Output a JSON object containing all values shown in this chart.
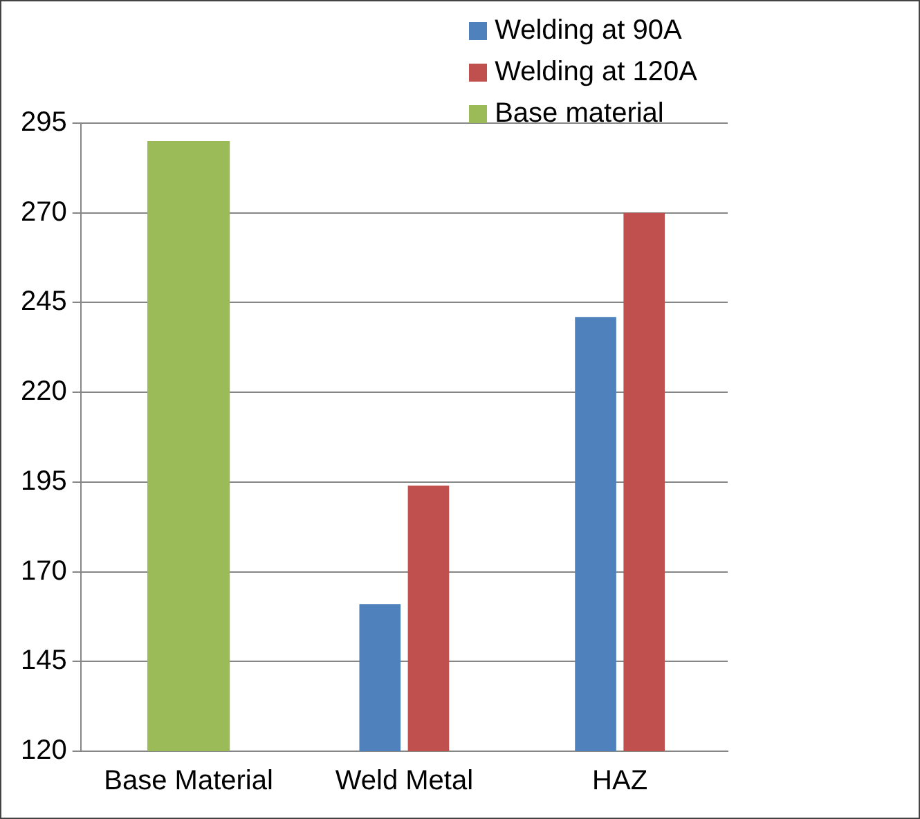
{
  "chart_data": {
    "type": "bar",
    "categories": [
      "Base Material",
      "Weld Metal",
      "HAZ"
    ],
    "series": [
      {
        "name": "Welding at 90A",
        "color": "#4f81bd",
        "values": [
          null,
          161,
          241
        ]
      },
      {
        "name": "Welding at 120A",
        "color": "#c0504d",
        "values": [
          null,
          194,
          270
        ]
      },
      {
        "name": "Base material",
        "color": "#9bbb59",
        "values": [
          290,
          null,
          null
        ]
      }
    ],
    "ylim": [
      120,
      295
    ],
    "yticks": [
      120,
      145,
      170,
      195,
      220,
      245,
      270,
      295
    ],
    "grid": "y",
    "legend": "top right"
  }
}
